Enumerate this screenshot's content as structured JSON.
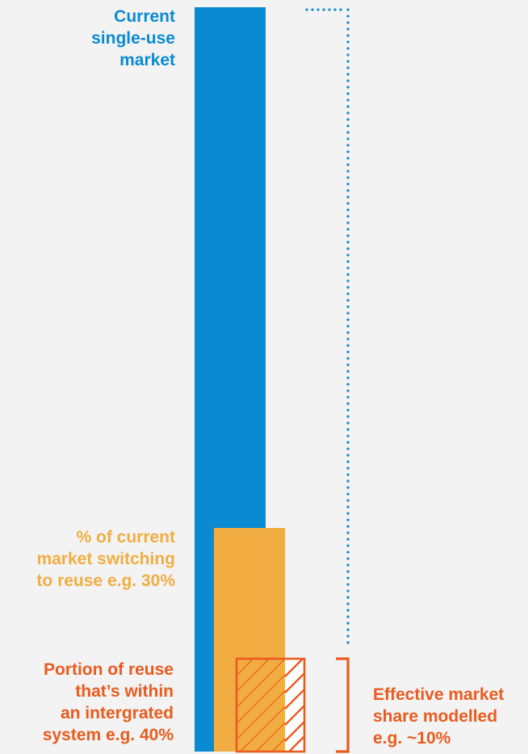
{
  "labels": {
    "single_use_market": [
      "Current",
      "single-use",
      "market"
    ],
    "switching": [
      "% of current",
      "market switching",
      "to reuse e.g. 30%"
    ],
    "integrated": [
      "Portion of reuse",
      "that’s within",
      "an intergrated",
      "system e.g. 40%"
    ],
    "effective": [
      "Effective market",
      "share modelled",
      "e.g. ~10%"
    ]
  },
  "chart_data": {
    "type": "bar",
    "categories": [
      "Current single-use market",
      "% of current market switching to reuse",
      "Portion of reuse within an integrated system"
    ],
    "values": [
      100,
      30,
      12
    ],
    "relative_share": {
      "switching_to_reuse": 30,
      "integrated_share_of_reuse": 40,
      "effective_market_share": 10
    }
  },
  "colors": {
    "background": "#f3f3f3",
    "blue": "#0a8ad2",
    "yellow": "#f1ad42",
    "orange": "#eb5b1e",
    "white_segment": "#ffffff"
  }
}
